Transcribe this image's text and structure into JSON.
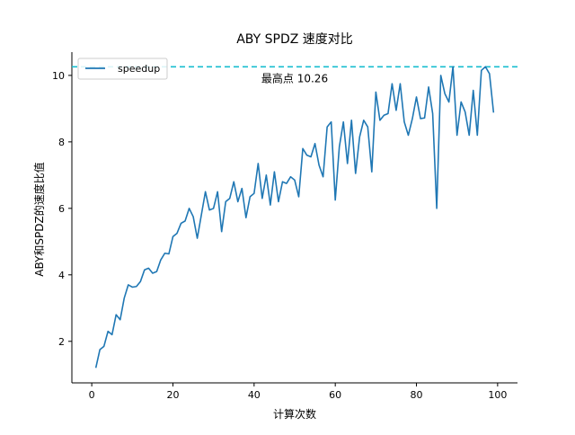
{
  "chart_data": {
    "type": "line",
    "title": "ABY SPDZ 速度对比",
    "xlabel": "计算次数",
    "ylabel": "ABY和SPDZ的速度比值",
    "xlim": [
      -4.9,
      104.9
    ],
    "ylim": [
      0.75,
      10.7
    ],
    "xticks": [
      0,
      20,
      40,
      60,
      80,
      100
    ],
    "yticks": [
      2,
      4,
      6,
      8,
      10
    ],
    "grid": false,
    "legend_position": "top-left",
    "series": [
      {
        "name": "speedup",
        "color": "#1f77b4",
        "x": [
          1,
          2,
          3,
          4,
          5,
          6,
          7,
          8,
          9,
          10,
          11,
          12,
          13,
          14,
          15,
          16,
          17,
          18,
          19,
          20,
          21,
          22,
          23,
          24,
          25,
          26,
          27,
          28,
          29,
          30,
          31,
          32,
          33,
          34,
          35,
          36,
          37,
          38,
          39,
          40,
          41,
          42,
          43,
          44,
          45,
          46,
          47,
          48,
          49,
          50,
          51,
          52,
          53,
          54,
          55,
          56,
          57,
          58,
          59,
          60,
          61,
          62,
          63,
          64,
          65,
          66,
          67,
          68,
          69,
          70,
          71,
          72,
          73,
          74,
          75,
          76,
          77,
          78,
          79,
          80,
          81,
          82,
          83,
          84,
          85,
          86,
          87,
          88,
          89,
          90,
          91,
          92,
          93,
          94,
          95,
          96,
          97,
          98,
          99
        ],
        "y": [
          1.2,
          1.75,
          1.85,
          2.3,
          2.2,
          2.8,
          2.65,
          3.3,
          3.7,
          3.63,
          3.65,
          3.8,
          4.15,
          4.2,
          4.05,
          4.1,
          4.45,
          4.65,
          4.63,
          5.15,
          5.25,
          5.55,
          5.62,
          6.0,
          5.75,
          5.1,
          5.8,
          6.5,
          5.95,
          6.0,
          6.5,
          5.3,
          6.2,
          6.3,
          6.8,
          6.2,
          6.6,
          5.72,
          6.35,
          6.45,
          7.35,
          6.3,
          7.0,
          6.1,
          7.1,
          6.2,
          6.8,
          6.75,
          6.95,
          6.85,
          6.35,
          7.8,
          7.6,
          7.55,
          7.95,
          7.3,
          6.95,
          8.45,
          8.6,
          6.25,
          7.85,
          8.6,
          7.35,
          8.65,
          7.05,
          8.15,
          8.65,
          8.45,
          7.1,
          9.5,
          8.65,
          8.8,
          8.85,
          9.75,
          8.95,
          9.75,
          8.6,
          8.2,
          8.7,
          9.35,
          8.7,
          8.72,
          9.65,
          8.85,
          6.0,
          10.0,
          9.45,
          9.2,
          10.26,
          8.2,
          9.2,
          8.9,
          8.2,
          9.55,
          8.2,
          10.15,
          10.26,
          10.05,
          8.88
        ]
      }
    ],
    "reference_line": {
      "y": 10.26,
      "color": "#17becf",
      "style": "dashed"
    },
    "annotation": {
      "text": "最高点 10.26",
      "x": 50,
      "y": 9.9
    }
  }
}
